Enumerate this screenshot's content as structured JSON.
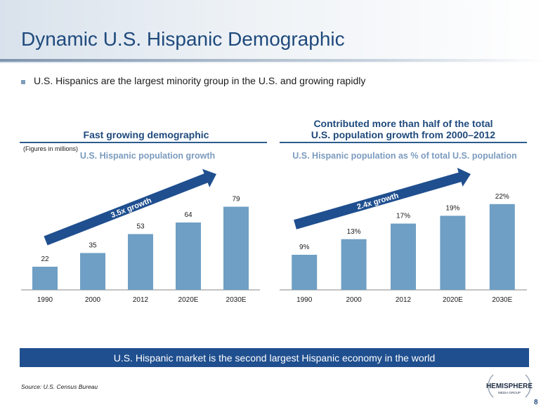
{
  "slide": {
    "title": "Dynamic U.S. Hispanic Demographic",
    "bullet": "U.S. Hispanics are the largest minority group in the U.S. and growing rapidly",
    "banner": "U.S. Hispanic market is the second largest Hispanic economy in the world",
    "source": "Source:  U.S. Census Bureau",
    "page_number": "8",
    "logo": {
      "line1": "HEMISPHERE",
      "line2": "MEDIA GROUP"
    }
  },
  "left_panel": {
    "heading": "Fast growing demographic",
    "note": "(Figures in millions)"
  },
  "right_panel": {
    "heading_line1": "Contributed more than half of the total",
    "heading_line2": "U.S. population growth from 2000–2012"
  },
  "colors": {
    "bar": "#6f9fc4",
    "arrow": "#1f4f8f",
    "title": "#1f4a7c",
    "subtitle": "#7b9bbe",
    "banner": "#1f4f8f"
  },
  "chart_data": [
    {
      "type": "bar",
      "title": "U.S. Hispanic population growth",
      "categories": [
        "1990",
        "2000",
        "2012",
        "2020E",
        "2030E"
      ],
      "values": [
        22,
        35,
        53,
        64,
        79
      ],
      "labels": [
        "22",
        "35",
        "53",
        "64",
        "79"
      ],
      "ylim": [
        0,
        100
      ],
      "annotation": "3.5x growth",
      "grid": false
    },
    {
      "type": "bar",
      "title": "U.S. Hispanic population as % of total U.S. population",
      "categories": [
        "1990",
        "2000",
        "2012",
        "2020E",
        "2030E"
      ],
      "values": [
        9,
        13,
        17,
        19,
        22
      ],
      "labels": [
        "9%",
        "13%",
        "17%",
        "19%",
        "22%"
      ],
      "ylim": [
        0,
        27
      ],
      "annotation": "2.4x growth",
      "grid": false
    }
  ]
}
